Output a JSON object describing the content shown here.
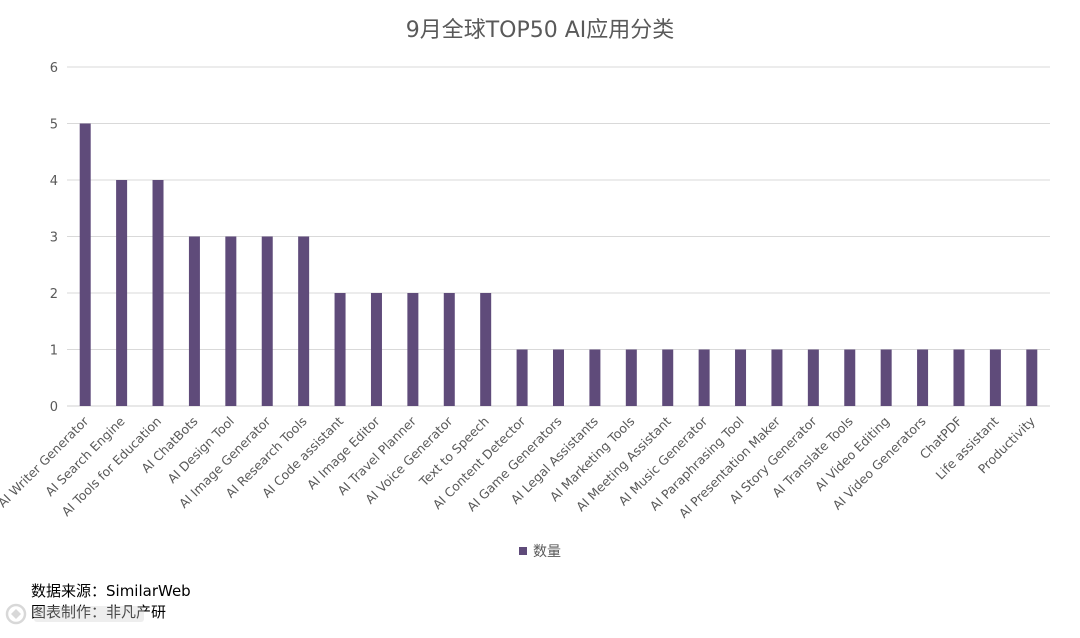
{
  "chart_data": {
    "type": "bar",
    "title": "9月全球TOP50 AI应用分类",
    "categories": [
      "AI Writer Generator",
      "AI Search Engine",
      "AI Tools for Education",
      "AI ChatBots",
      "AI Design Tool",
      "AI Image Generator",
      "AI Research Tools",
      "AI Code assistant",
      "AI Image Editor",
      "AI Travel Planner",
      "AI Voice Generator",
      "Text to Speech",
      "AI Content Detector",
      "AI Game Generators",
      "AI Legal Assistants",
      "AI Marketing Tools",
      "AI Meeting Assistant",
      "AI Music Generator",
      "AI Paraphrasing Tool",
      "AI Presentation Maker",
      "AI Story Generator",
      "AI Translate Tools",
      "AI Video Editing",
      "AI Video Generators",
      "ChatPDF",
      "Life assistant",
      "Productivity"
    ],
    "series": [
      {
        "name": "数量",
        "values": [
          5,
          4,
          4,
          3,
          3,
          3,
          3,
          2,
          2,
          2,
          2,
          2,
          1,
          1,
          1,
          1,
          1,
          1,
          1,
          1,
          1,
          1,
          1,
          1,
          1,
          1,
          1
        ]
      }
    ],
    "ylim": [
      0,
      6
    ],
    "yticks": [
      0,
      1,
      2,
      3,
      4,
      5,
      6
    ],
    "grid": true,
    "legend_position": "bottom",
    "bar_color": "#5F4B7A",
    "grid_color": "#d9d9d9"
  },
  "footer": {
    "source": "数据来源：SimilarWeb",
    "credit": "图表制作：非凡产研"
  }
}
